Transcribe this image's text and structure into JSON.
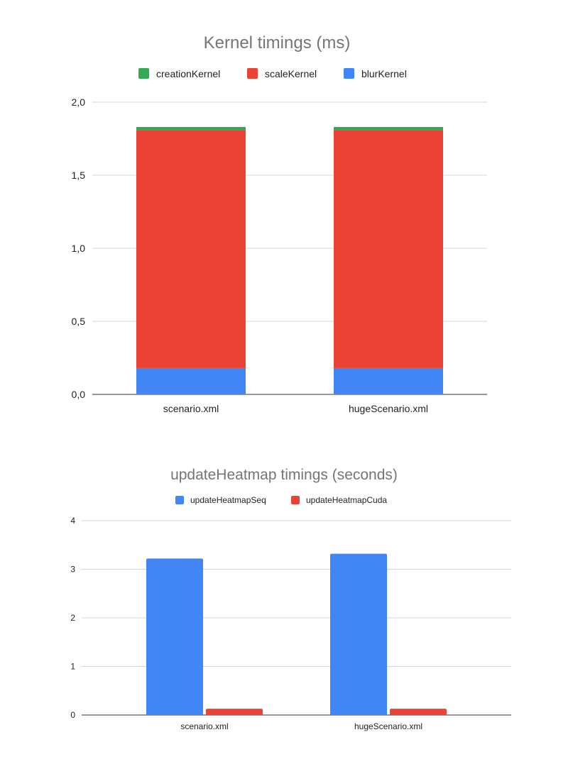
{
  "chart_data": [
    {
      "type": "bar",
      "stacked": true,
      "title": "Kernel timings (ms)",
      "categories": [
        "scenario.xml",
        "hugeScenario.xml"
      ],
      "series": [
        {
          "name": "blurKernel",
          "color": "#4285f4",
          "values": [
            0.18,
            0.18
          ]
        },
        {
          "name": "scaleKernel",
          "color": "#ea4335",
          "values": [
            1.63,
            1.63
          ]
        },
        {
          "name": "creationKernel",
          "color": "#34a853",
          "values": [
            0.02,
            0.02
          ]
        }
      ],
      "legend_order": [
        "creationKernel",
        "scaleKernel",
        "blurKernel"
      ],
      "legend_position": "top",
      "ylim": [
        0,
        2
      ],
      "yticks": [
        "0,0",
        "0,5",
        "1,0",
        "1,5",
        "2,0"
      ],
      "grid": true
    },
    {
      "type": "bar",
      "stacked": false,
      "title": "updateHeatmap timings (seconds)",
      "categories": [
        "scenario.xml",
        "hugeScenario.xml"
      ],
      "series": [
        {
          "name": "updateHeatmapSeq",
          "color": "#4285f4",
          "values": [
            3.22,
            3.32
          ]
        },
        {
          "name": "updateHeatmapCuda",
          "color": "#ea4335",
          "values": [
            0.13,
            0.13
          ]
        }
      ],
      "legend_order": [
        "updateHeatmapSeq",
        "updateHeatmapCuda"
      ],
      "legend_position": "top",
      "ylim": [
        0,
        4
      ],
      "yticks": [
        "0",
        "1",
        "2",
        "3",
        "4"
      ],
      "grid": true
    }
  ]
}
